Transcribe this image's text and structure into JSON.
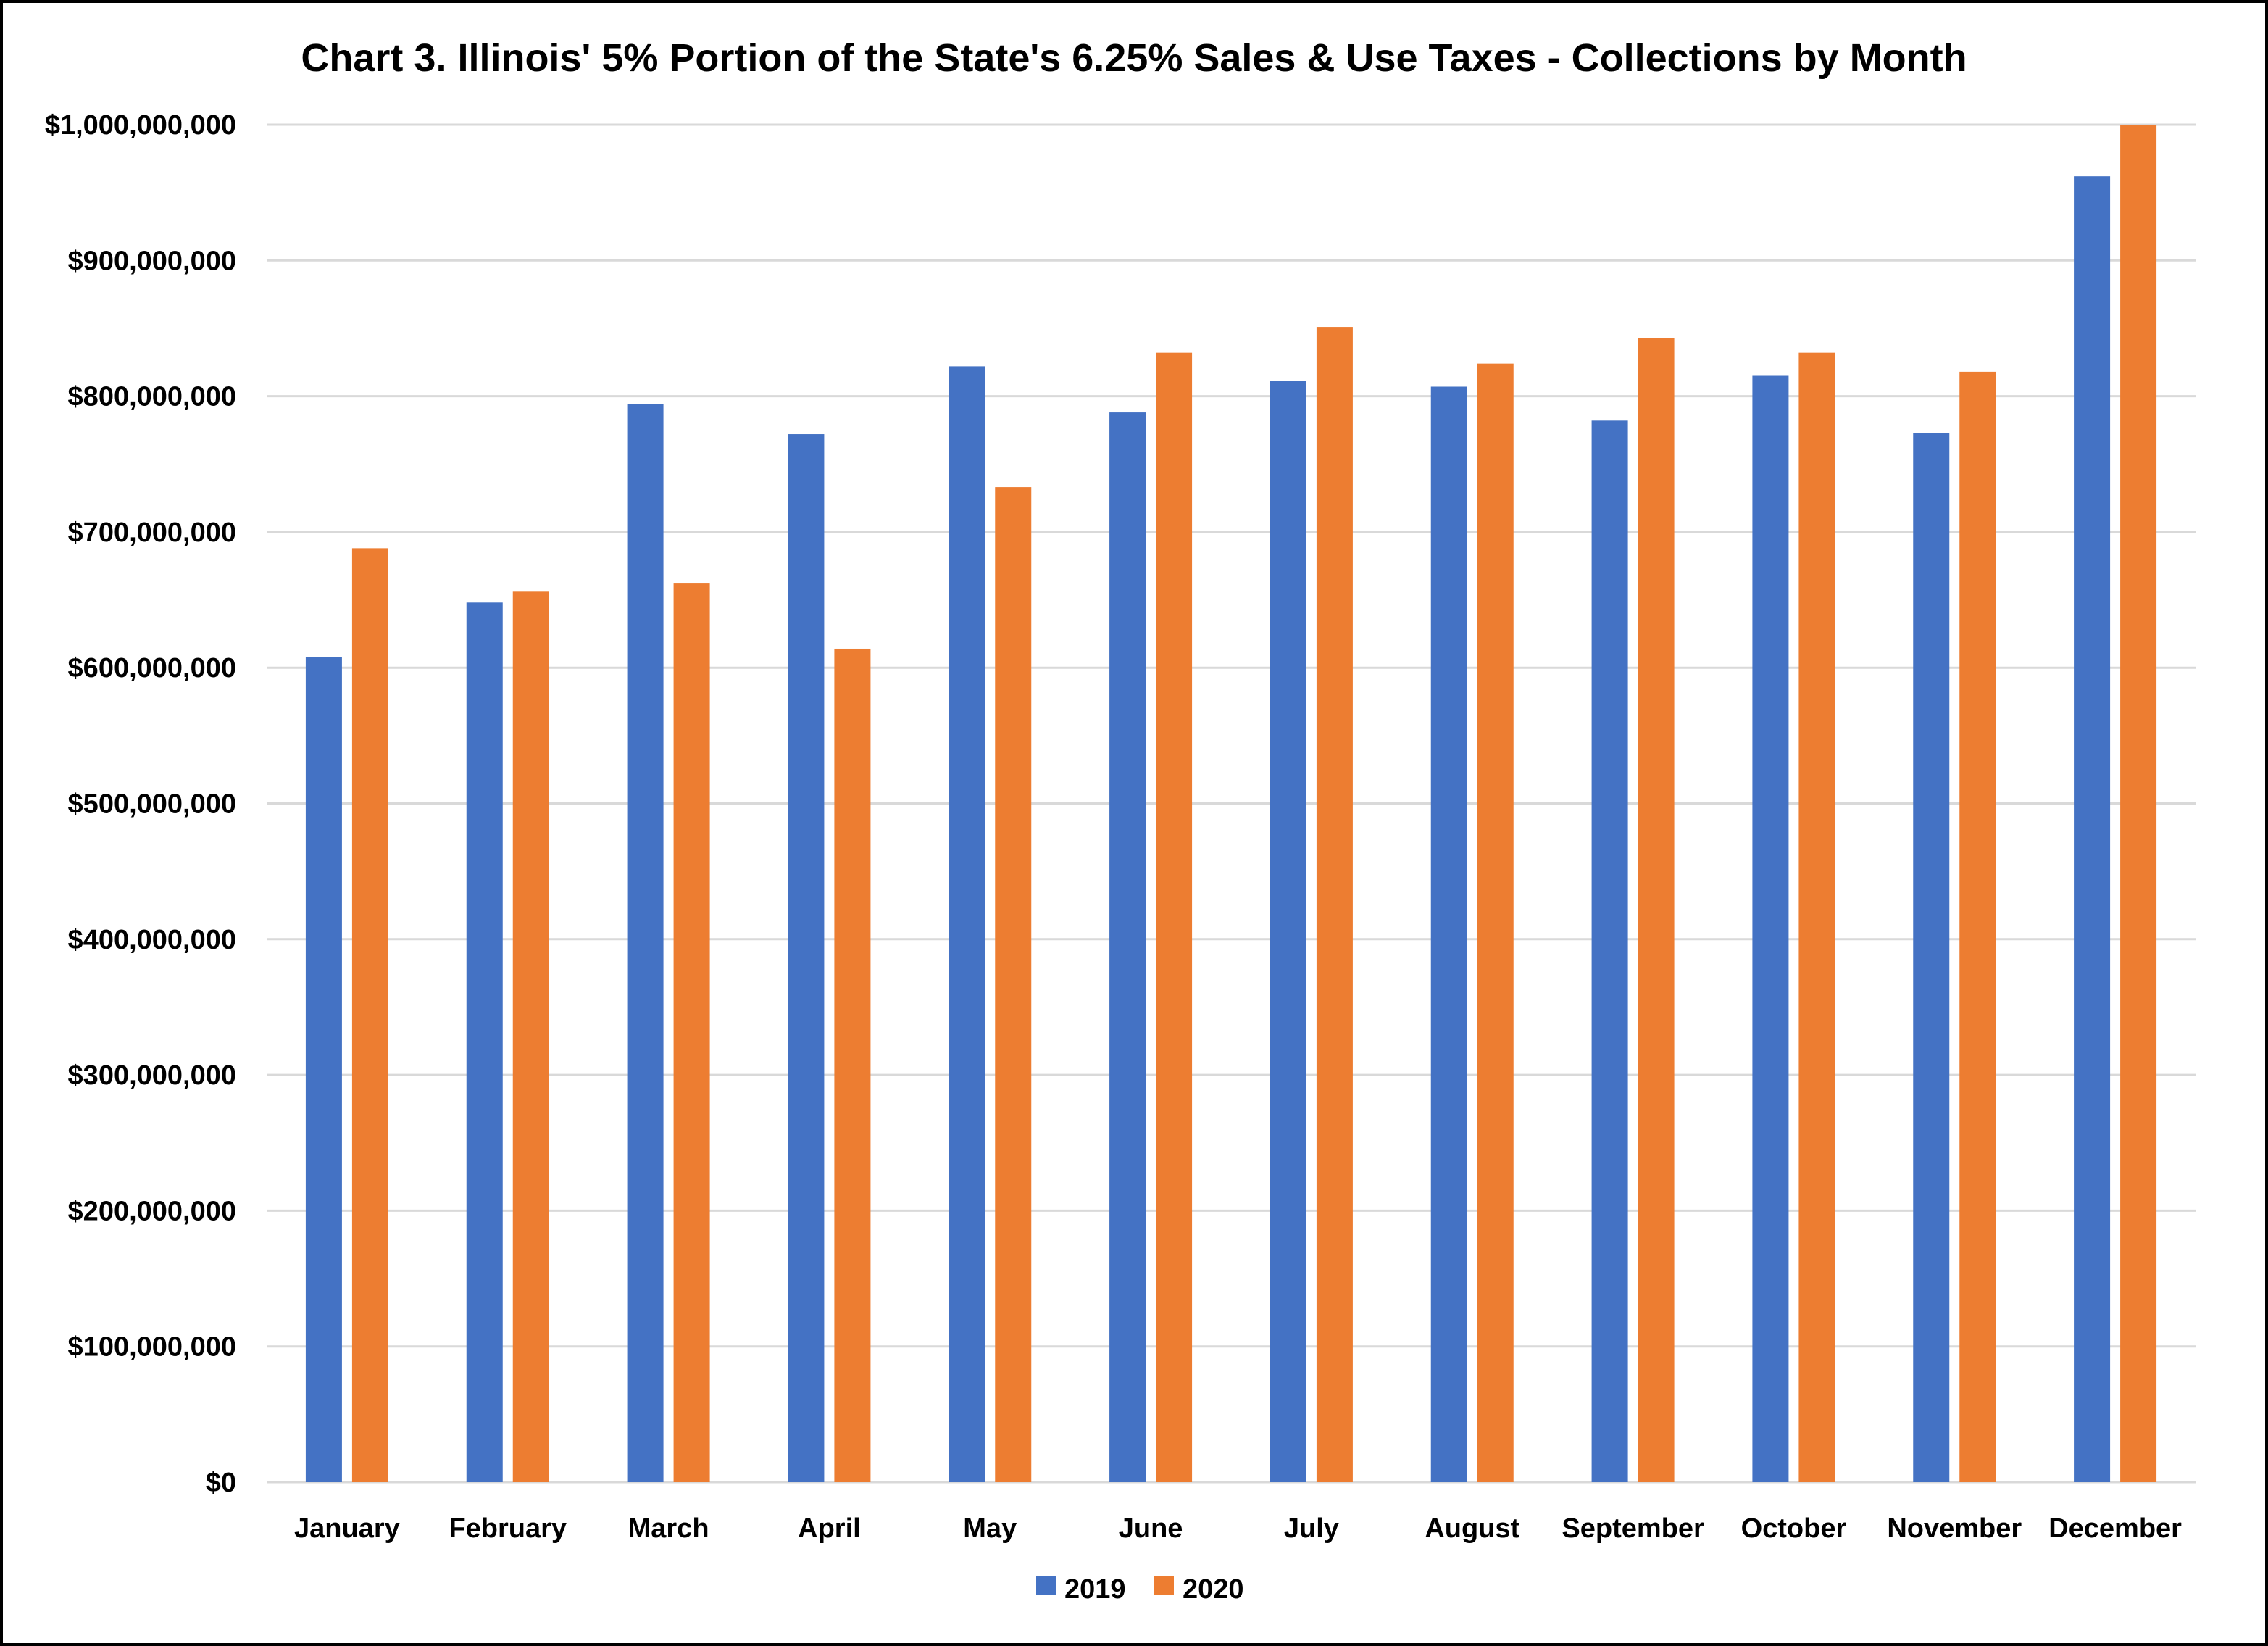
{
  "chart_data": {
    "type": "bar",
    "title": "Chart 3. Illinois' 5% Portion of the State's 6.25% Sales & Use Taxes - Collections by Month",
    "xlabel": "",
    "ylabel": "",
    "categories": [
      "January",
      "February",
      "March",
      "April",
      "May",
      "June",
      "July",
      "August",
      "September",
      "October",
      "November",
      "December"
    ],
    "series": [
      {
        "name": "2019",
        "color": "#4472c4",
        "values": [
          608000000,
          648000000,
          794000000,
          772000000,
          822000000,
          788000000,
          811000000,
          807000000,
          782000000,
          815000000,
          773000000,
          962000000
        ]
      },
      {
        "name": "2020",
        "color": "#ed7d31",
        "values": [
          688000000,
          656000000,
          662000000,
          614000000,
          733000000,
          832000000,
          851000000,
          824000000,
          843000000,
          832000000,
          818000000,
          1000000000
        ]
      }
    ],
    "ylim": [
      0,
      1000000000
    ],
    "yticks": [
      0,
      100000000,
      200000000,
      300000000,
      400000000,
      500000000,
      600000000,
      700000000,
      800000000,
      900000000,
      1000000000
    ],
    "ytick_labels": [
      "$0",
      "$100,000,000",
      "$200,000,000",
      "$300,000,000",
      "$400,000,000",
      "$500,000,000",
      "$600,000,000",
      "$700,000,000",
      "$800,000,000",
      "$900,000,000",
      "$1,000,000,000"
    ],
    "grid": true,
    "legend_position": "bottom"
  }
}
